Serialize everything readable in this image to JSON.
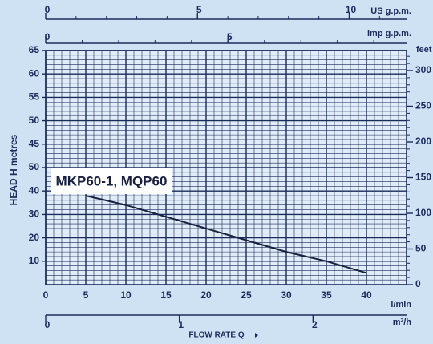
{
  "chart_data": {
    "type": "line",
    "y_label": "HEAD H metres",
    "x_label": "FLOW RATE Q",
    "x_unit": "l/min",
    "y2_unit": "feet",
    "x": [
      5,
      10,
      15,
      20,
      25,
      30,
      35,
      40
    ],
    "series": [
      {
        "name": "MKP60-1, MQP60",
        "color": "#17203f",
        "values": [
          38,
          34,
          29,
          24,
          19,
          14,
          10,
          5
        ]
      }
    ],
    "xlim": [
      0,
      45
    ],
    "xticks": [
      0,
      5,
      10,
      15,
      20,
      25,
      30,
      35,
      40
    ],
    "ylim": [
      0,
      100
    ],
    "yticks": [
      10,
      20,
      30,
      40,
      50,
      {
        "value": 60,
        "label": "45"
      },
      {
        "value": 70,
        "label": "50"
      },
      {
        "value": 80,
        "label": "55"
      },
      {
        "value": 90,
        "label": "60"
      },
      {
        "value": 100,
        "label": "65"
      }
    ],
    "y2lim": [
      0,
      328.08
    ],
    "y2ticks": [
      0,
      50,
      100,
      150,
      200,
      250,
      300
    ],
    "grid": true,
    "top_axes": [
      {
        "unit": "US g.p.m.",
        "lim": [
          0,
          11.89
        ],
        "ticks": [
          0,
          5,
          10
        ]
      },
      {
        "unit": "Imp g.p.m.",
        "lim": [
          0,
          9.9
        ],
        "ticks": [
          0,
          5
        ]
      }
    ],
    "bottom_axis": {
      "unit": "m³/h",
      "lim": [
        0,
        2.7
      ],
      "ticks": [
        0,
        1,
        2
      ]
    }
  }
}
